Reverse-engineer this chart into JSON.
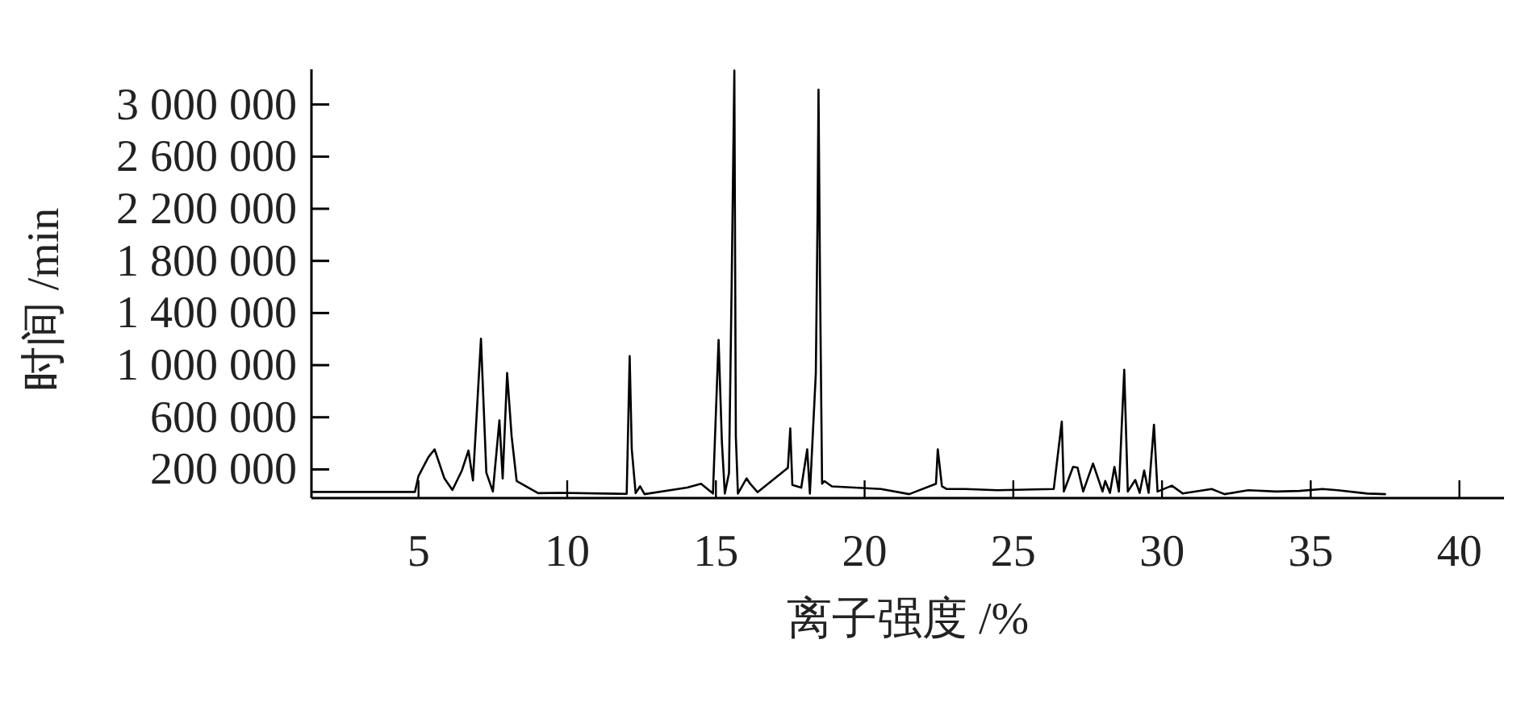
{
  "chart_data": {
    "type": "line",
    "xlabel": "离子强度 /%",
    "ylabel": "时间 /min",
    "xlim": [
      1.4,
      41.5
    ],
    "ylim": [
      -20000,
      3270000
    ],
    "xticks": [
      5,
      10,
      15,
      20,
      25,
      30,
      35,
      40
    ],
    "yticks": [
      {
        "value": 200000,
        "label": "200 000"
      },
      {
        "value": 600000,
        "label": "600 000"
      },
      {
        "value": 1000000,
        "label": "1 000 000"
      },
      {
        "value": 1400000,
        "label": "1 400 000"
      },
      {
        "value": 1800000,
        "label": "1 800 000"
      },
      {
        "value": 2200000,
        "label": "2 200 000"
      },
      {
        "value": 2600000,
        "label": "2 600 000"
      },
      {
        "value": 3000000,
        "label": "3 000 000"
      }
    ],
    "series": [
      {
        "color": "#000000",
        "x": [
          1.43,
          4.88,
          5.0,
          5.33,
          5.54,
          5.87,
          6.14,
          6.46,
          6.68,
          6.83,
          7.1,
          7.28,
          7.5,
          7.72,
          7.83,
          7.98,
          8.13,
          8.3,
          9.02,
          9.8,
          12.0,
          12.1,
          12.17,
          12.3,
          12.45,
          12.6,
          14.03,
          14.5,
          14.9,
          15.09,
          15.2,
          15.3,
          15.44,
          15.53,
          15.62,
          15.67,
          15.74,
          16.03,
          16.15,
          16.4,
          17.42,
          17.5,
          17.57,
          17.87,
          18.07,
          18.16,
          18.36,
          18.42,
          18.45,
          18.5,
          18.57,
          18.65,
          18.9,
          20.55,
          21.5,
          22.4,
          22.46,
          22.6,
          22.75,
          23.38,
          24.46,
          26.36,
          26.63,
          26.7,
          27.01,
          27.16,
          27.35,
          27.68,
          28.0,
          28.09,
          28.25,
          28.4,
          28.55,
          28.64,
          28.73,
          28.85,
          29.1,
          29.25,
          29.4,
          29.55,
          29.73,
          29.85,
          30.33,
          30.7,
          31.67,
          32.1,
          32.9,
          33.84,
          34.63,
          35.4,
          35.9,
          36.9,
          37.5
        ],
        "values": [
          27000,
          27000,
          150000,
          293000,
          354000,
          131000,
          42000,
          192000,
          345000,
          115000,
          1202000,
          176000,
          30000,
          576000,
          131000,
          939000,
          455000,
          111000,
          18000,
          20000,
          12000,
          1069000,
          357000,
          18000,
          70000,
          10000,
          60000,
          90000,
          15000,
          1194000,
          414000,
          15000,
          172000,
          1630000,
          3260000,
          455000,
          15000,
          131000,
          90000,
          25000,
          212000,
          515000,
          80000,
          60000,
          354000,
          15000,
          939000,
          2192000,
          3113000,
          1667000,
          90000,
          110000,
          70000,
          50000,
          10000,
          90000,
          354000,
          70000,
          50000,
          50000,
          40000,
          50000,
          567000,
          30000,
          220000,
          213000,
          30000,
          245000,
          30000,
          111000,
          20000,
          220000,
          30000,
          503000,
          964000,
          30000,
          119000,
          20000,
          192000,
          20000,
          543000,
          30000,
          75000,
          15000,
          50000,
          10000,
          40000,
          30000,
          35000,
          50000,
          40000,
          15000,
          10000
        ]
      }
    ]
  }
}
